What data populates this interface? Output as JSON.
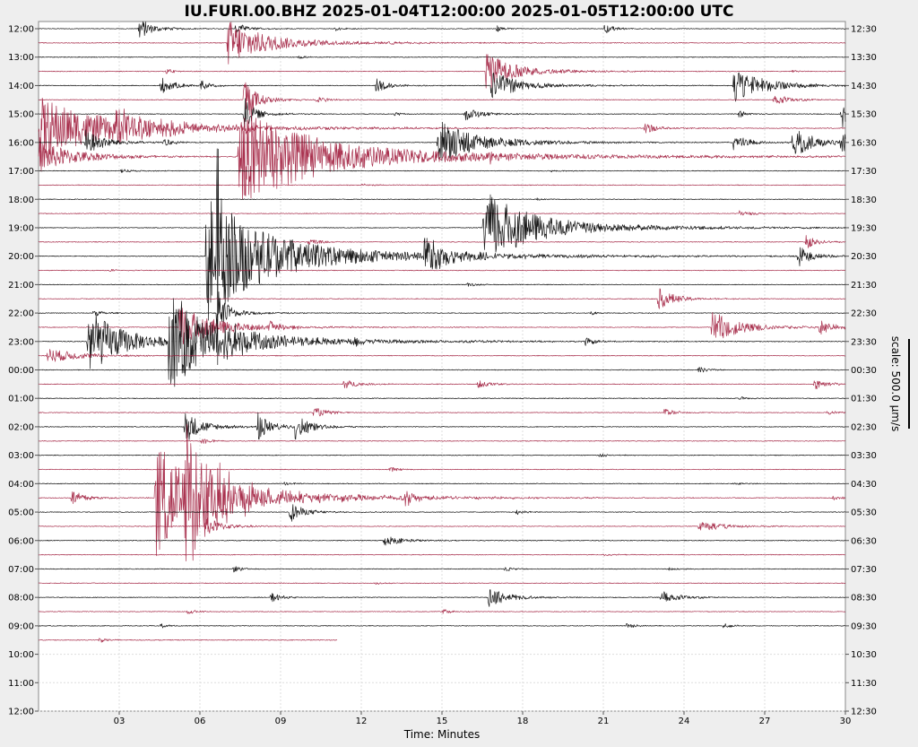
{
  "chart_data": {
    "type": "line",
    "title": "IU.FURI.00.BHZ 2025-01-04T12:00:00 2025-01-05T12:00:00 UTC",
    "xlabel": "Time: Minutes",
    "x_ticks": [
      "03",
      "06",
      "09",
      "12",
      "15",
      "18",
      "21",
      "24",
      "27",
      "30"
    ],
    "xlim": [
      0,
      30
    ],
    "left_ticks": [
      "12:00",
      "13:00",
      "14:00",
      "15:00",
      "16:00",
      "17:00",
      "18:00",
      "19:00",
      "20:00",
      "21:00",
      "22:00",
      "23:00",
      "00:00",
      "01:00",
      "02:00",
      "03:00",
      "04:00",
      "05:00",
      "06:00",
      "07:00",
      "08:00",
      "09:00",
      "10:00",
      "11:00",
      "12:00"
    ],
    "right_ticks": [
      "12:30",
      "13:30",
      "14:30",
      "15:30",
      "16:30",
      "17:30",
      "18:30",
      "19:30",
      "20:30",
      "21:30",
      "22:30",
      "23:30",
      "00:30",
      "01:30",
      "02:30",
      "03:30",
      "04:30",
      "05:30",
      "06:30",
      "07:30",
      "08:30",
      "09:30",
      "10:30",
      "11:30",
      "12:30"
    ],
    "scale_label": "scale: 500.0 µm/s",
    "scale_value_um_s": 500.0,
    "grid": true,
    "colors": [
      "#000000",
      "#a01c3c"
    ],
    "last_trace_end_minute": 11.1,
    "traces": [
      {
        "start": "12:00",
        "events": [
          [
            3.7,
            60,
            0.4
          ],
          [
            7.3,
            40,
            0.3
          ],
          [
            21,
            30,
            0.3
          ],
          [
            17,
            20,
            0.2
          ],
          [
            11,
            15,
            0.2
          ]
        ]
      },
      {
        "start": "12:30",
        "events": [
          [
            7,
            120,
            1.2
          ],
          [
            13,
            10,
            0.3
          ]
        ]
      },
      {
        "start": "13:00",
        "events": [
          [
            9.6,
            12,
            0.3
          ]
        ]
      },
      {
        "start": "13:30",
        "events": [
          [
            4.7,
            15,
            0.3
          ],
          [
            16.6,
            110,
            0.8
          ],
          [
            28,
            10,
            0.2
          ]
        ]
      },
      {
        "start": "14:00",
        "events": [
          [
            4.5,
            50,
            0.4
          ],
          [
            6,
            30,
            0.3
          ],
          [
            12.5,
            40,
            0.4
          ],
          [
            16.8,
            80,
            0.8
          ],
          [
            25.8,
            110,
            0.8
          ]
        ]
      },
      {
        "start": "14:30",
        "events": [
          [
            7.6,
            160,
            0.3
          ],
          [
            10.3,
            20,
            0.4
          ],
          [
            27.3,
            30,
            0.5
          ]
        ]
      },
      {
        "start": "15:00",
        "events": [
          [
            7.6,
            100,
            0.3
          ],
          [
            13.2,
            15,
            0.2
          ],
          [
            15.8,
            40,
            0.5
          ],
          [
            26,
            20,
            0.3
          ],
          [
            29.8,
            90,
            0.3
          ]
        ]
      },
      {
        "start": "15:30",
        "events": [
          [
            0,
            160,
            2
          ],
          [
            2.7,
            80,
            1.5
          ],
          [
            7.5,
            50,
            0.3
          ],
          [
            22.5,
            30,
            0.4
          ]
        ]
      },
      {
        "start": "16:00",
        "events": [
          [
            1.7,
            70,
            0.6
          ],
          [
            4.6,
            25,
            0.3
          ],
          [
            14.8,
            120,
            1.2
          ],
          [
            25.8,
            50,
            0.4
          ],
          [
            28,
            90,
            0.6
          ],
          [
            29.8,
            60,
            0.3
          ]
        ]
      },
      {
        "start": "16:30",
        "events": [
          [
            0,
            80,
            1.2
          ],
          [
            7.4,
            260,
            2.5
          ],
          [
            16.7,
            30,
            0.4
          ]
        ]
      },
      {
        "start": "17:00",
        "events": [
          [
            3,
            15,
            0.3
          ],
          [
            19,
            10,
            0.3
          ]
        ]
      },
      {
        "start": "17:30",
        "events": [
          [
            12,
            8,
            0.3
          ]
        ]
      },
      {
        "start": "18:00",
        "events": [
          [
            18.5,
            8,
            0.3
          ]
        ]
      },
      {
        "start": "18:30",
        "events": [
          [
            26,
            15,
            0.5
          ]
        ]
      },
      {
        "start": "19:00",
        "events": [
          [
            16.5,
            200,
            1.5
          ],
          [
            19.5,
            20,
            0.3
          ]
        ]
      },
      {
        "start": "19:30",
        "events": [
          [
            10,
            25,
            0.3
          ],
          [
            28.5,
            45,
            0.3
          ]
        ]
      },
      {
        "start": "20:00",
        "events": [
          [
            6.2,
            350,
            1.8
          ],
          [
            6.6,
            800,
            0.08
          ],
          [
            14.3,
            100,
            0.8
          ],
          [
            28.2,
            60,
            0.4
          ]
        ]
      },
      {
        "start": "20:30",
        "events": [
          [
            2.6,
            10,
            0.3
          ]
        ]
      },
      {
        "start": "21:00",
        "events": [
          [
            15.9,
            12,
            0.3
          ]
        ]
      },
      {
        "start": "21:30",
        "events": [
          [
            23,
            60,
            0.5
          ]
        ]
      },
      {
        "start": "22:00",
        "events": [
          [
            2,
            20,
            0.3
          ],
          [
            6.6,
            150,
            0.3
          ],
          [
            20.5,
            10,
            0.3
          ]
        ]
      },
      {
        "start": "22:30",
        "events": [
          [
            5.2,
            120,
            1.0
          ],
          [
            8.5,
            40,
            0.4
          ],
          [
            25,
            90,
            0.8
          ],
          [
            29,
            50,
            0.4
          ]
        ]
      },
      {
        "start": "23:00",
        "events": [
          [
            1.8,
            180,
            1.0
          ],
          [
            4.8,
            250,
            1.5
          ],
          [
            6.6,
            80,
            0.5
          ],
          [
            11.7,
            20,
            0.3
          ],
          [
            20.3,
            25,
            0.3
          ]
        ]
      },
      {
        "start": "23:30",
        "events": [
          [
            0.3,
            40,
            1.0
          ]
        ]
      },
      {
        "start": "00:00",
        "events": [
          [
            24.5,
            20,
            0.3
          ]
        ]
      },
      {
        "start": "00:30",
        "events": [
          [
            11.3,
            30,
            0.4
          ],
          [
            16.3,
            25,
            0.4
          ],
          [
            28.8,
            30,
            0.4
          ]
        ]
      },
      {
        "start": "01:00",
        "events": [
          [
            26,
            10,
            0.3
          ]
        ]
      },
      {
        "start": "01:30",
        "events": [
          [
            10.2,
            30,
            0.4
          ],
          [
            23.2,
            25,
            0.4
          ],
          [
            29.3,
            15,
            0.3
          ]
        ]
      },
      {
        "start": "02:00",
        "events": [
          [
            5.4,
            90,
            0.5
          ],
          [
            8.1,
            80,
            0.4
          ],
          [
            9.5,
            80,
            0.4
          ]
        ]
      },
      {
        "start": "02:30",
        "events": [
          [
            6,
            20,
            0.3
          ]
        ]
      },
      {
        "start": "03:00",
        "events": [
          [
            20.8,
            15,
            0.3
          ]
        ]
      },
      {
        "start": "03:30",
        "events": [
          [
            13,
            15,
            0.3
          ]
        ]
      },
      {
        "start": "04:00",
        "events": [
          [
            9.1,
            10,
            0.3
          ],
          [
            25.8,
            12,
            0.3
          ]
        ]
      },
      {
        "start": "04:30",
        "events": [
          [
            1.2,
            45,
            0.4
          ],
          [
            4.3,
            300,
            1.2
          ],
          [
            5.4,
            300,
            1.2
          ],
          [
            13.6,
            45,
            0.4
          ],
          [
            29.5,
            15,
            0.3
          ]
        ]
      },
      {
        "start": "05:00",
        "events": [
          [
            9.3,
            60,
            0.4
          ],
          [
            17.7,
            15,
            0.3
          ]
        ]
      },
      {
        "start": "05:30",
        "events": [
          [
            6.2,
            50,
            0.5
          ],
          [
            24.5,
            30,
            0.8
          ]
        ]
      },
      {
        "start": "06:00",
        "events": [
          [
            12.8,
            30,
            0.6
          ]
        ]
      },
      {
        "start": "06:30",
        "events": [
          [
            21,
            8,
            0.3
          ]
        ]
      },
      {
        "start": "07:00",
        "events": [
          [
            7.2,
            20,
            0.3
          ],
          [
            17.3,
            15,
            0.3
          ],
          [
            23.4,
            10,
            0.3
          ]
        ]
      },
      {
        "start": "07:30",
        "events": [
          [
            12.5,
            8,
            0.3
          ]
        ]
      },
      {
        "start": "08:00",
        "events": [
          [
            8.6,
            30,
            0.3
          ],
          [
            16.7,
            50,
            0.6
          ],
          [
            23.1,
            40,
            0.5
          ]
        ]
      },
      {
        "start": "08:30",
        "events": [
          [
            5.5,
            15,
            0.3
          ],
          [
            15,
            15,
            0.3
          ]
        ]
      },
      {
        "start": "09:00",
        "events": [
          [
            4.5,
            15,
            0.3
          ],
          [
            21.8,
            15,
            0.3
          ],
          [
            25.4,
            15,
            0.3
          ]
        ]
      },
      {
        "start": "09:30",
        "events": [
          [
            2.2,
            15,
            0.3
          ]
        ]
      }
    ]
  }
}
